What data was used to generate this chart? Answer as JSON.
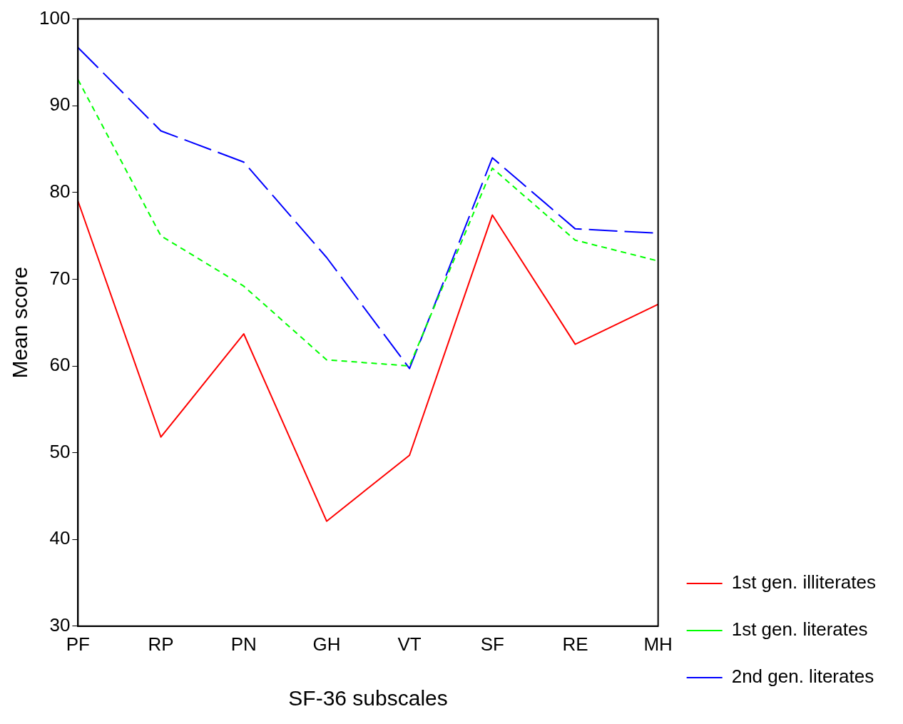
{
  "chart_data": {
    "type": "line",
    "xlabel": "SF-36 subscales",
    "ylabel": "Mean score",
    "categories": [
      "PF",
      "RP",
      "PN",
      "GH",
      "VT",
      "SF",
      "RE",
      "MH"
    ],
    "ylim": [
      30,
      100
    ],
    "yticks": [
      30,
      40,
      50,
      60,
      70,
      80,
      90,
      100
    ],
    "grid": false,
    "legend": "right",
    "marker": "none",
    "series": [
      {
        "name": "1st gen. illiterates",
        "color": "#ff0000",
        "line_style": "solid",
        "values": [
          79,
          51.8,
          63.7,
          42.1,
          49.7,
          77.4,
          62.5,
          67.1
        ]
      },
      {
        "name": "1st gen. literates",
        "color": "#00ff00",
        "line_style": "dotted",
        "values": [
          93,
          75,
          69.2,
          60.7,
          60,
          82.8,
          74.5,
          72.1
        ]
      },
      {
        "name": "2nd gen. literates",
        "color": "#0000ff",
        "line_style": "dashed",
        "values": [
          96.7,
          87.1,
          83.5,
          72.5,
          59.7,
          84,
          75.8,
          75.3
        ]
      }
    ]
  }
}
